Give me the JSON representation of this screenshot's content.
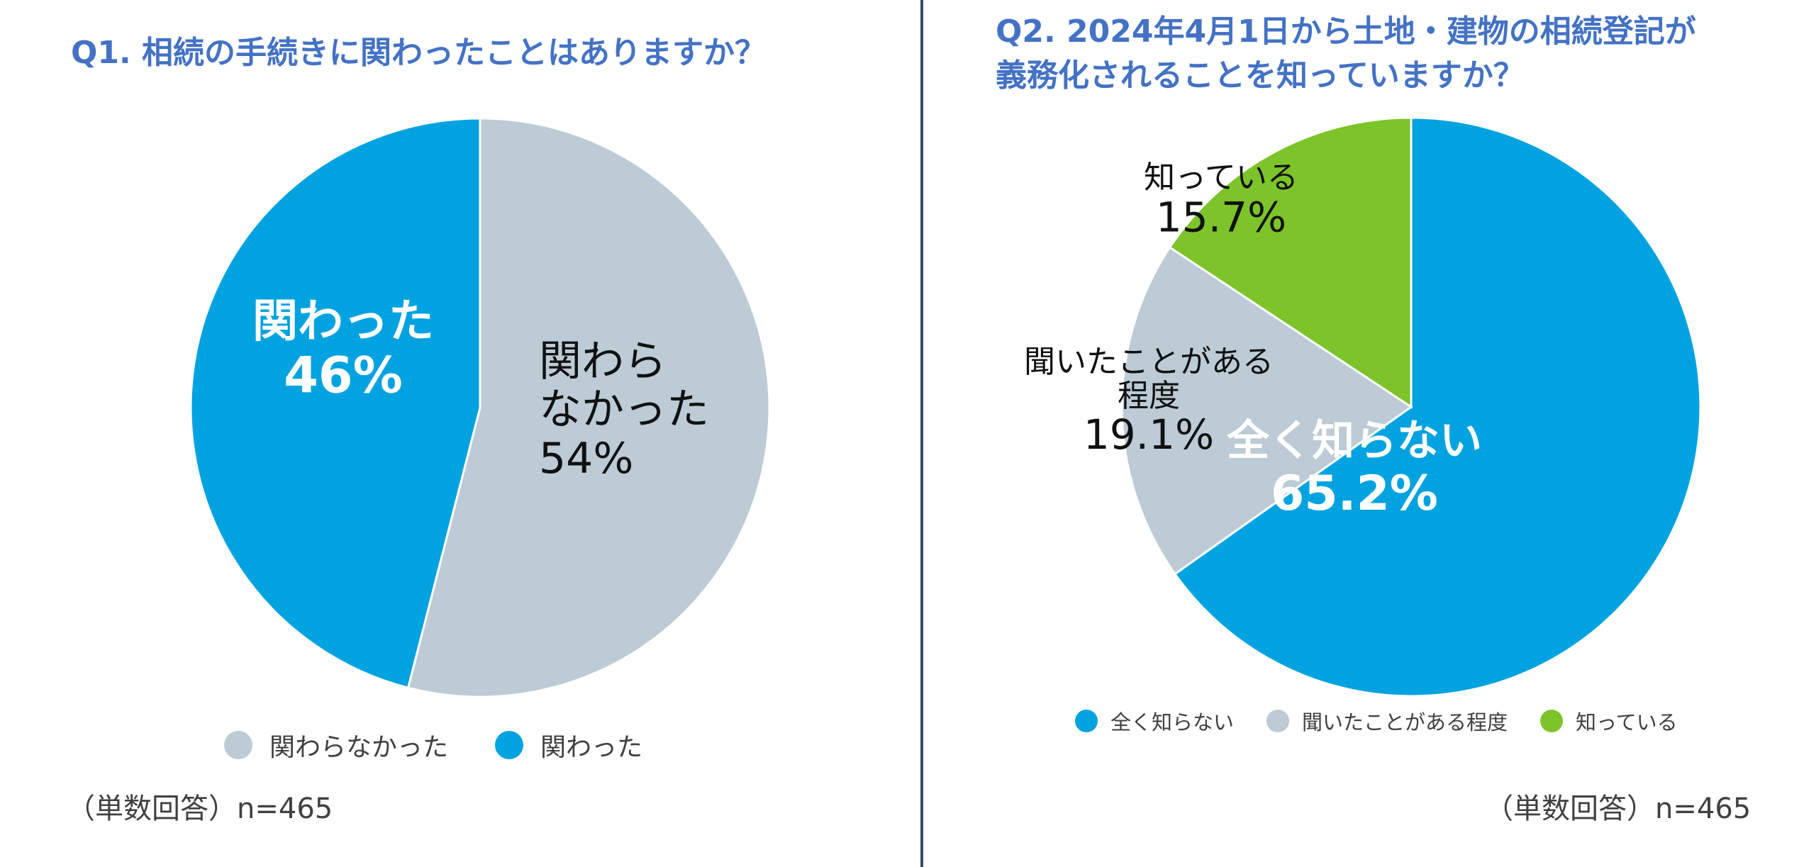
{
  "colors": {
    "title": "#4472c4",
    "blue": "#00a2df",
    "gray": "#bccbd5",
    "green": "#7cc42a",
    "divider": "#3a4a66"
  },
  "chart_data": [
    {
      "type": "pie",
      "title": "Q1. 相続の手続きに関わったことはありますか？",
      "slices": [
        {
          "label_lines": [
            "関わら",
            "なかった"
          ],
          "legend": "関わらなかった",
          "value": 54,
          "value_text": "54%",
          "color": "#bccbd5"
        },
        {
          "label_lines": [
            "関わった"
          ],
          "legend": "関わった",
          "value": 46,
          "value_text": "46%",
          "color": "#00a2df"
        }
      ],
      "legend_order": [
        0,
        1
      ],
      "legend_position": "bottom",
      "note": "（単数回答）n=465"
    },
    {
      "type": "pie",
      "title": "Q2.  2024年4月1日から土地・建物の相続登記が\n義務化されることを知っていますか？",
      "slices": [
        {
          "label_lines": [
            "全く知らない"
          ],
          "legend": "全く知らない",
          "value": 65.2,
          "value_text": "65.2%",
          "color": "#00a2df"
        },
        {
          "label_lines": [
            "聞いたことがある",
            "程度"
          ],
          "legend": "聞いたことがある程度",
          "value": 19.1,
          "value_text": "19.1%",
          "color": "#bccbd5"
        },
        {
          "label_lines": [
            "知っている"
          ],
          "legend": "知っている",
          "value": 15.7,
          "value_text": "15.7%",
          "color": "#7cc42a"
        }
      ],
      "legend_order": [
        0,
        1,
        2
      ],
      "legend_position": "bottom",
      "note": "（単数回答）n=465"
    }
  ]
}
